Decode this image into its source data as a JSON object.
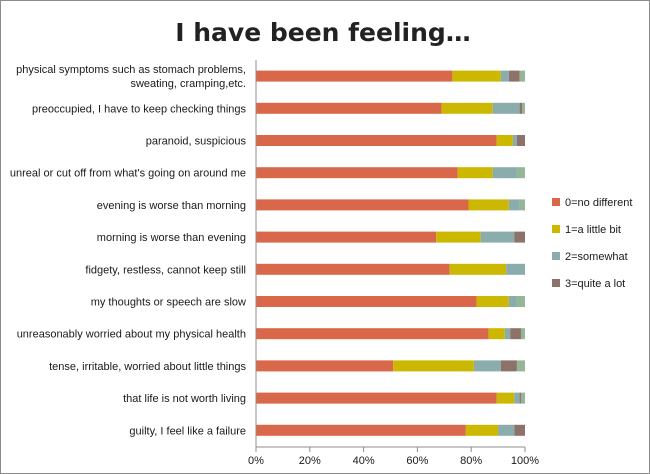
{
  "chart_data": {
    "type": "bar",
    "orientation": "horizontal",
    "stacked": true,
    "title": "I have been feeling…",
    "xlabel": "",
    "ylabel": "",
    "xlim": [
      0,
      100
    ],
    "x_ticks": [
      "0%",
      "20%",
      "40%",
      "60%",
      "80%",
      "100%"
    ],
    "grid": false,
    "legend_position": "right",
    "categories": [
      [
        "physical symptoms such as stomach problems,",
        "sweating, cramping,etc."
      ],
      [
        "preoccupied, I have to keep checking things"
      ],
      [
        "paranoid, suspicious"
      ],
      [
        "unreal or cut off from what's going on around me"
      ],
      [
        "evening is worse than morning"
      ],
      [
        "morning is worse than evening"
      ],
      [
        "fidgety, restless, cannot keep still"
      ],
      [
        "my thoughts or speech are slow"
      ],
      [
        "unreasonably worried about my physical health"
      ],
      [
        "tense, irritable, worried about little things"
      ],
      [
        "that life is not worth living"
      ],
      [
        "guilty, I feel like a failure"
      ]
    ],
    "series": [
      {
        "name": "0=no different",
        "color": "#d9674a",
        "values": [
          73,
          69,
          89.5,
          75,
          79,
          67,
          72,
          82,
          86.5,
          51,
          89.5,
          78
        ]
      },
      {
        "name": "1=a little bit",
        "color": "#ccb800",
        "values": [
          18,
          19,
          6,
          13,
          15,
          16.5,
          21,
          12,
          6,
          30,
          6.5,
          12
        ]
      },
      {
        "name": "2=somewhat",
        "color": "#8aacac",
        "values": [
          3,
          10,
          1.5,
          9,
          4,
          12.5,
          7,
          3,
          2,
          10,
          2,
          6
        ]
      },
      {
        "name": "3=quite a lot",
        "color": "#8c7268",
        "values": [
          4,
          1,
          3,
          0,
          0,
          4,
          0,
          0,
          4,
          6,
          0.5,
          4
        ]
      },
      {
        "name": "",
        "color": "#97b597",
        "values": [
          2,
          1,
          0,
          3,
          2,
          0,
          0,
          3,
          1.5,
          3,
          1.5,
          0
        ]
      }
    ]
  }
}
